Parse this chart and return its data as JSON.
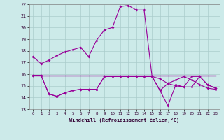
{
  "xlabel": "Windchill (Refroidissement éolien,°C)",
  "background_color": "#cceae9",
  "grid_color": "#aacccc",
  "line_color": "#990099",
  "xlim": [
    -0.5,
    23.5
  ],
  "ylim": [
    13,
    22
  ],
  "xticks": [
    0,
    1,
    2,
    3,
    4,
    5,
    6,
    7,
    8,
    9,
    10,
    11,
    12,
    13,
    14,
    15,
    16,
    17,
    18,
    19,
    20,
    21,
    22,
    23
  ],
  "yticks": [
    13,
    14,
    15,
    16,
    17,
    18,
    19,
    20,
    21,
    22
  ],
  "series1_x": [
    0,
    1,
    2,
    3,
    4,
    5,
    6,
    7,
    8,
    9,
    10,
    11,
    12,
    13,
    14,
    15,
    16,
    17,
    18,
    19,
    20,
    21,
    22,
    23
  ],
  "series1_y": [
    17.5,
    16.9,
    17.2,
    17.6,
    17.9,
    18.1,
    18.3,
    17.5,
    18.9,
    19.8,
    20.0,
    21.8,
    21.9,
    21.5,
    21.5,
    15.8,
    15.6,
    15.2,
    15.5,
    15.8,
    15.5,
    15.1,
    14.8,
    14.7
  ],
  "series2_x": [
    0,
    1,
    2,
    3,
    4,
    5,
    6,
    7,
    8,
    9,
    10,
    11,
    12,
    13,
    14,
    15,
    16,
    17,
    18,
    19,
    20,
    21,
    22,
    23
  ],
  "series2_y": [
    15.9,
    15.9,
    14.3,
    14.1,
    14.4,
    14.6,
    14.7,
    14.7,
    14.7,
    15.8,
    15.8,
    15.8,
    15.8,
    15.8,
    15.8,
    15.8,
    14.6,
    15.2,
    15.0,
    14.9,
    15.8,
    15.8,
    15.1,
    14.8
  ],
  "series3_x": [
    0,
    1,
    2,
    3,
    4,
    5,
    6,
    7,
    8,
    9,
    10,
    11,
    12,
    13,
    14,
    15,
    16,
    17,
    18,
    19,
    20,
    21,
    22,
    23
  ],
  "series3_y": [
    15.9,
    15.9,
    14.3,
    14.1,
    14.4,
    14.6,
    14.7,
    14.7,
    14.7,
    15.8,
    15.8,
    15.8,
    15.8,
    15.8,
    15.8,
    15.8,
    14.6,
    13.3,
    15.1,
    14.9,
    14.9,
    15.8,
    15.1,
    14.8
  ],
  "series4_x": [
    0,
    1,
    2,
    3,
    4,
    5,
    6,
    7,
    8,
    9,
    10,
    11,
    12,
    13,
    14,
    15,
    16,
    17,
    18,
    19,
    20,
    21,
    22,
    23
  ],
  "series4_y": [
    15.9,
    15.9,
    15.9,
    15.9,
    15.9,
    15.9,
    15.9,
    15.9,
    15.9,
    15.9,
    15.9,
    15.9,
    15.9,
    15.9,
    15.9,
    15.9,
    15.9,
    15.9,
    15.9,
    15.9,
    15.9,
    15.9,
    15.9,
    15.9
  ]
}
